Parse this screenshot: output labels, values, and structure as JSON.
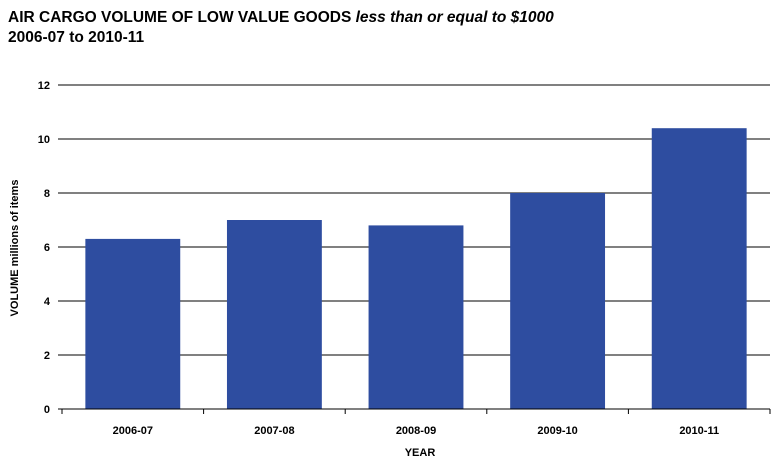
{
  "title": {
    "main": "AIR CARGO VOLUME OF LOW VALUE GOODS",
    "qualifier": "less than or equal to $1000",
    "subtitle": "2006-07 to 2010-11"
  },
  "chart_data": {
    "type": "bar",
    "title": "AIR CARGO VOLUME OF LOW VALUE GOODS less than or equal to $1000",
    "subtitle": "2006-07 to 2010-11",
    "categories": [
      "2006-07",
      "2007-08",
      "2008-09",
      "2009-10",
      "2010-11"
    ],
    "values": [
      6.3,
      7.0,
      6.8,
      8.0,
      10.4
    ],
    "xlabel": "YEAR",
    "ylabel": "VOLUME millions of items",
    "ylim": [
      0,
      12
    ],
    "yticks": [
      0,
      2,
      4,
      6,
      8,
      10,
      12
    ],
    "grid": true,
    "bar_color": "#2E4DA0",
    "legend": "none"
  }
}
